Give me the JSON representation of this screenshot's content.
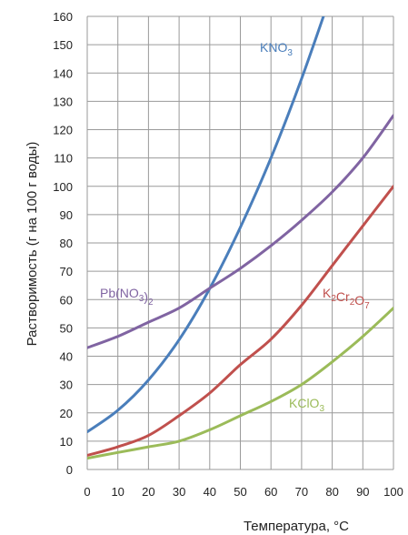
{
  "chart_data": {
    "type": "line",
    "xlabel": "Температура, °C",
    "ylabel": "Растворимость (г на 100 г воды)",
    "xlim": [
      0,
      100
    ],
    "ylim": [
      0,
      160
    ],
    "x_ticks": [
      0,
      10,
      20,
      30,
      40,
      50,
      60,
      70,
      80,
      90,
      100
    ],
    "y_ticks": [
      0,
      10,
      20,
      30,
      40,
      50,
      60,
      70,
      80,
      90,
      100,
      110,
      120,
      130,
      140,
      150,
      160
    ],
    "grid": "vertical and horizontal",
    "legend": "none",
    "series": [
      {
        "name": "KNO3",
        "label_parts": [
          {
            "t": "KNO",
            "sub": false
          },
          {
            "t": "3",
            "sub": true
          }
        ],
        "color": "#4a7ebb",
        "x": [
          0,
          10,
          20,
          30,
          40,
          50,
          60,
          70,
          80
        ],
        "y": [
          13.3,
          20.9,
          31.6,
          45.8,
          63.9,
          85.5,
          110,
          138,
          169
        ]
      },
      {
        "name": "Pb(NO3)2",
        "label_parts": [
          {
            "t": "Pb(NO",
            "sub": false
          },
          {
            "t": "3",
            "sub": true
          },
          {
            "t": ")",
            "sub": false
          },
          {
            "t": "2",
            "sub": true
          }
        ],
        "color": "#8064a2",
        "x": [
          0,
          10,
          20,
          30,
          40,
          50,
          60,
          70,
          80,
          90,
          100
        ],
        "y": [
          43,
          47,
          52,
          57,
          64,
          71,
          79,
          88,
          98,
          110,
          125
        ]
      },
      {
        "name": "K2Cr2O7",
        "label_parts": [
          {
            "t": "K",
            "sub": false
          },
          {
            "t": "2",
            "sub": true
          },
          {
            "t": "Cr",
            "sub": false
          },
          {
            "t": "2",
            "sub": true
          },
          {
            "t": "O",
            "sub": false
          },
          {
            "t": "7",
            "sub": true
          }
        ],
        "color": "#c0504d",
        "x": [
          0,
          10,
          20,
          30,
          40,
          50,
          60,
          70,
          80,
          90,
          100
        ],
        "y": [
          5,
          8,
          12,
          19,
          27,
          37,
          46,
          58,
          72,
          86,
          100
        ]
      },
      {
        "name": "KClO3",
        "label_parts": [
          {
            "t": "KClO",
            "sub": false
          },
          {
            "t": "3",
            "sub": true
          }
        ],
        "color": "#9bbb59",
        "x": [
          0,
          10,
          20,
          30,
          40,
          50,
          60,
          70,
          80,
          90,
          100
        ],
        "y": [
          4,
          6,
          8,
          10,
          14,
          19,
          24,
          30,
          38,
          47,
          57
        ]
      }
    ]
  }
}
